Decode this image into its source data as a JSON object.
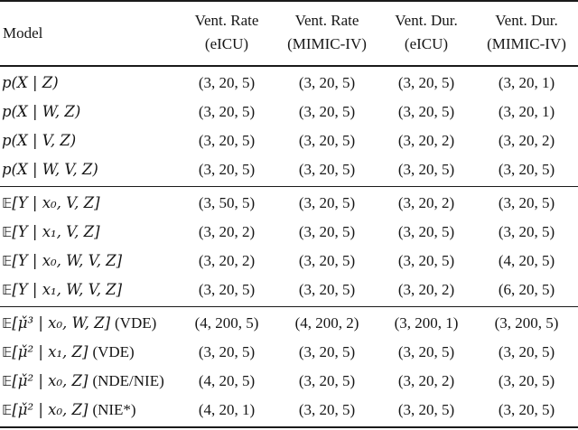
{
  "table": {
    "header": {
      "model": "Model",
      "columns": [
        {
          "line1": "Vent. Rate",
          "line2": "(eICU)"
        },
        {
          "line1": "Vent. Rate",
          "line2": "(MIMIC-IV)"
        },
        {
          "line1": "Vent. Dur.",
          "line2": "(eICU)"
        },
        {
          "line1": "Vent. Dur.",
          "line2": "(MIMIC-IV)"
        }
      ]
    },
    "sections": [
      {
        "rows": [
          {
            "e": "",
            "math": "p(X | Z)",
            "note": "",
            "values": [
              "(3, 20, 5)",
              "(3, 20, 5)",
              "(3, 20, 5)",
              "(3, 20, 1)"
            ]
          },
          {
            "e": "",
            "math": "p(X | W, Z)",
            "note": "",
            "values": [
              "(3, 20, 5)",
              "(3, 20, 5)",
              "(3, 20, 5)",
              "(3, 20, 1)"
            ]
          },
          {
            "e": "",
            "math": "p(X | V, Z)",
            "note": "",
            "values": [
              "(3, 20, 5)",
              "(3, 20, 5)",
              "(3, 20, 2)",
              "(3, 20, 2)"
            ]
          },
          {
            "e": "",
            "math": "p(X | W, V, Z)",
            "note": "",
            "values": [
              "(3, 20, 5)",
              "(3, 20, 5)",
              "(3, 20, 5)",
              "(3, 20, 5)"
            ]
          }
        ]
      },
      {
        "rows": [
          {
            "e": "𝔼",
            "math": "[Y | x₀, V, Z]",
            "note": "",
            "values": [
              "(3, 50, 5)",
              "(3, 20, 5)",
              "(3, 20, 2)",
              "(3, 20, 5)"
            ]
          },
          {
            "e": "𝔼",
            "math": "[Y | x₁, V, Z]",
            "note": "",
            "values": [
              "(3, 20, 2)",
              "(3, 20, 5)",
              "(3, 20, 5)",
              "(3, 20, 5)"
            ]
          },
          {
            "e": "𝔼",
            "math": "[Y | x₀, W, V, Z]",
            "note": "",
            "values": [
              "(3, 20, 2)",
              "(3, 20, 5)",
              "(3, 20, 5)",
              "(4, 20, 5)"
            ]
          },
          {
            "e": "𝔼",
            "math": "[Y | x₁, W, V, Z]",
            "note": "",
            "values": [
              "(3, 20, 5)",
              "(3, 20, 5)",
              "(3, 20, 2)",
              "(6, 20, 5)"
            ]
          }
        ]
      },
      {
        "rows": [
          {
            "e": "𝔼",
            "math": "[μ̌³ | x₀, W, Z]",
            "note": "(VDE)",
            "values": [
              "(4, 200, 5)",
              "(4, 200, 2)",
              "(3, 200, 1)",
              "(3, 200, 5)"
            ]
          },
          {
            "e": "𝔼",
            "math": "[μ̌² | x₁, Z]",
            "note": "(VDE)",
            "values": [
              "(3, 20, 5)",
              "(3, 20, 5)",
              "(3, 20, 5)",
              "(3, 20, 5)"
            ]
          },
          {
            "e": "𝔼",
            "math": "[μ̌² | x₀, Z]",
            "note": "(NDE/NIE)",
            "values": [
              "(4, 20, 5)",
              "(3, 20, 5)",
              "(3, 20, 2)",
              "(3, 20, 5)"
            ]
          },
          {
            "e": "𝔼",
            "math": "[μ̌² | x₀, Z]",
            "note": "(NIE*)",
            "values": [
              "(4, 20, 1)",
              "(3, 20, 5)",
              "(3, 20, 5)",
              "(3, 20, 5)"
            ]
          }
        ]
      }
    ]
  }
}
